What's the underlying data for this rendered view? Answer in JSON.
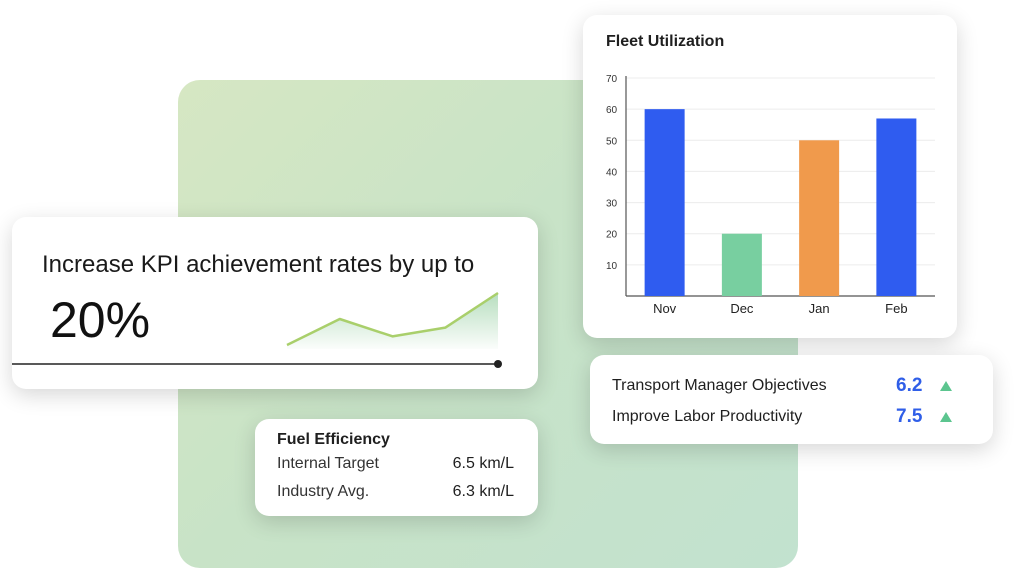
{
  "kpi": {
    "headline": "Increase KPI achievement rates by up to",
    "value": "20%",
    "trend_points": [
      0,
      3,
      1,
      2,
      6
    ],
    "accent_color": "#7cc38a"
  },
  "fleet": {
    "title": "Fleet Utilization",
    "chart_data": {
      "type": "bar",
      "title": "Fleet Utilization",
      "categories": [
        "Nov",
        "Dec",
        "Jan",
        "Feb"
      ],
      "values": [
        60,
        20,
        50,
        57
      ],
      "colors": [
        "#2f5cf0",
        "#78cfa0",
        "#f09a4c",
        "#2f5cf0"
      ],
      "yticks": [
        10,
        20,
        30,
        40,
        50,
        60,
        70
      ],
      "ylim": [
        0,
        70
      ],
      "grid": true
    }
  },
  "fuel": {
    "title": "Fuel Efficiency",
    "rows": [
      {
        "label": "Internal Target",
        "value": "6.5 km/L"
      },
      {
        "label": "Industry Avg.",
        "value": "6.3 km/L"
      }
    ]
  },
  "objectives": {
    "rows": [
      {
        "label": "Transport Manager Objectives",
        "value": "6.2",
        "trend_icon": "triangle-up-icon"
      },
      {
        "label": "Improve Labor Productivity",
        "value": "7.5",
        "trend_icon": "triangle-up-icon"
      }
    ],
    "value_color": "#2f5ee8",
    "trend_color": "#5cc58f"
  }
}
